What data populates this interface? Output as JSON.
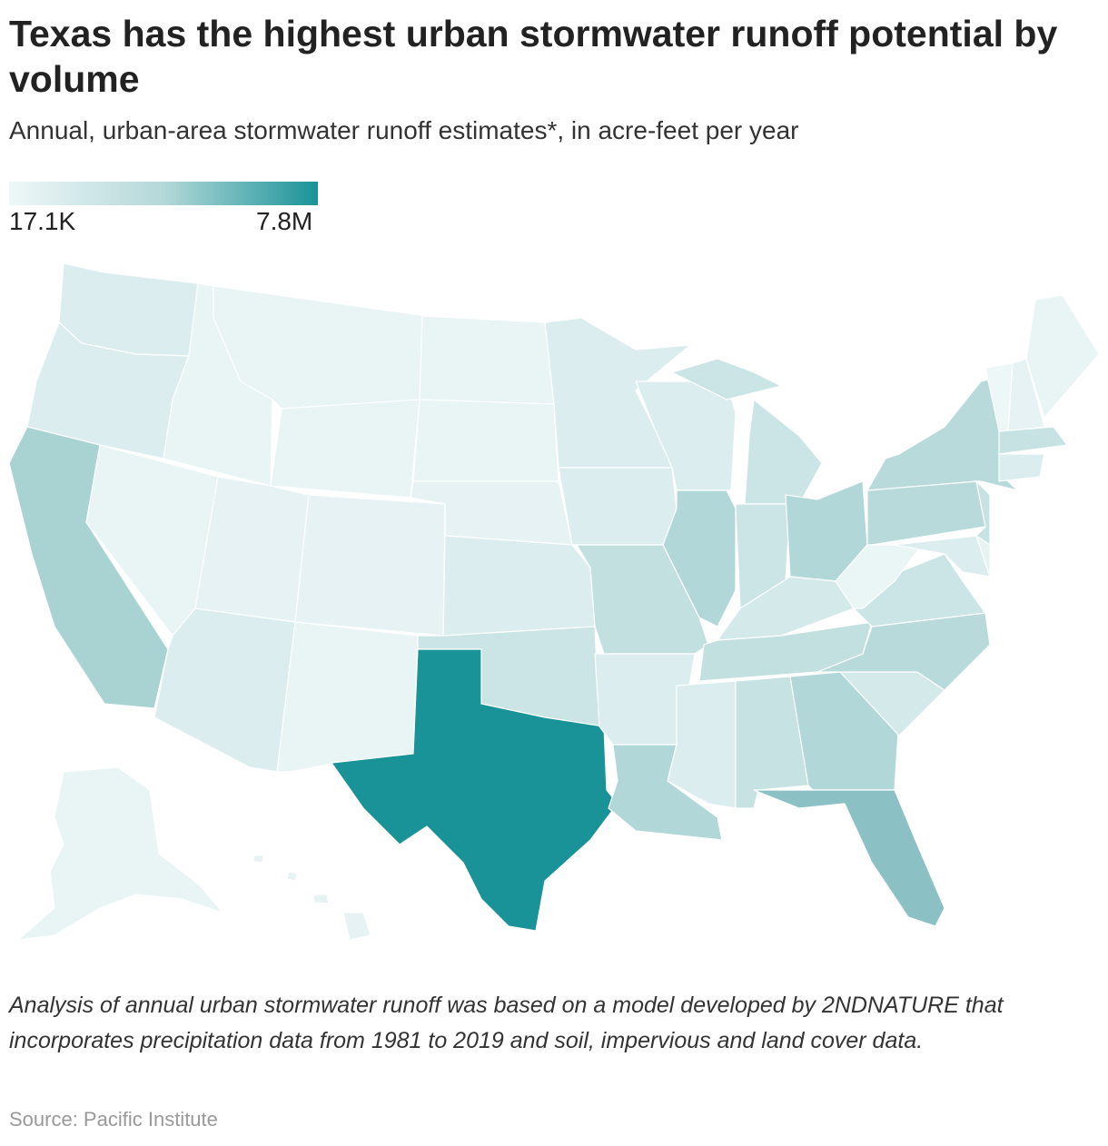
{
  "title": "Texas has the highest urban stormwater runoff potential by volume",
  "subtitle": "Annual, urban-area stormwater runoff estimates*, in acre-feet per year",
  "legend": {
    "min_label": "17.1K",
    "max_label": "7.8M",
    "min_color": "#eef7f8",
    "max_color": "#1a9398"
  },
  "note": "Analysis of annual urban stormwater runoff was based on a model developed by 2NDNATURE that incorporates precipitation data from 1981 to 2019 and soil, impervious and land cover data.",
  "source": "Source: Pacific Institute",
  "fills": {
    "TX": "#1a9398",
    "FL": "#8bc1c4",
    "CA": "#a9d2d3",
    "IL": "#b2d7d8",
    "OH": "#b2d7d8",
    "PA": "#b8dadb",
    "NY": "#b8dadb",
    "GA": "#b2d7d8",
    "NC": "#b8dadb",
    "LA": "#b2d7d8",
    "MO": "#c3e0e1",
    "TN": "#c3e0e1",
    "AL": "#c7e2e3",
    "VA": "#cbe4e5",
    "IN": "#cbe4e5",
    "MI": "#cbe4e5",
    "OK": "#cbe4e5",
    "NJ": "#c7e2e3",
    "MA": "#c7e2e3",
    "KY": "#d3e9ea",
    "SC": "#d3e9ea",
    "AZ": "#dcedef",
    "WA": "#dcedef",
    "OR": "#dcedef",
    "MN": "#dcedef",
    "KS": "#dcedef",
    "IA": "#dcedef",
    "WI": "#dcedef",
    "MS": "#dcedef",
    "MD": "#dcedef",
    "CT": "#dcedef",
    "MT": "#e9f4f5",
    "WY": "#e9f4f5",
    "ND": "#e9f4f5",
    "SD": "#e9f4f5",
    "NE": "#e6f2f3",
    "NV": "#e9f4f5",
    "ID": "#e9f4f5",
    "UT": "#e6f2f3",
    "CO": "#e6f2f3",
    "NM": "#e9f4f5",
    "AK": "#e9f4f5",
    "HI": "#e6f2f3",
    "WV": "#eaf5f6",
    "VT": "#eef7f8",
    "NH": "#e6f2f3",
    "ME": "#e9f4f5",
    "DE": "#e6f2f3"
  }
}
